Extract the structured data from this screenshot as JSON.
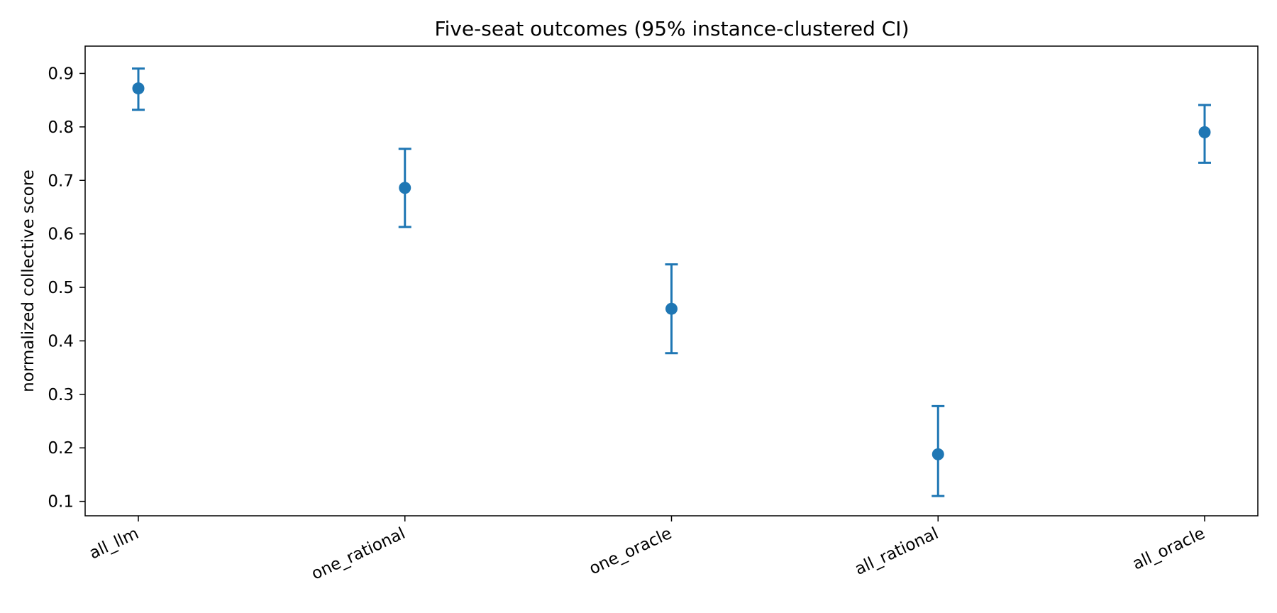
{
  "chart_data": {
    "type": "scatter",
    "title": "Five-seat outcomes (95% instance-clustered CI)",
    "xlabel": "",
    "ylabel": "normalized collective score",
    "categories": [
      "all_llm",
      "one_rational",
      "one_oracle",
      "all_rational",
      "all_oracle"
    ],
    "series": [
      {
        "values": [
          0.872,
          0.686,
          0.46,
          0.188,
          0.79
        ],
        "ci_low": [
          0.832,
          0.613,
          0.377,
          0.11,
          0.733
        ],
        "ci_high": [
          0.909,
          0.759,
          0.543,
          0.278,
          0.841
        ]
      }
    ],
    "ylim": [
      0.073,
      0.951
    ],
    "yticks": [
      0.1,
      0.2,
      0.3,
      0.4,
      0.5,
      0.6,
      0.7,
      0.8,
      0.9
    ],
    "ytick_labels": [
      "0.1",
      "0.2",
      "0.3",
      "0.4",
      "0.5",
      "0.6",
      "0.7",
      "0.8",
      "0.9"
    ],
    "grid": false,
    "marker_color": "#1f77b4",
    "error_bars": "95% CI"
  }
}
